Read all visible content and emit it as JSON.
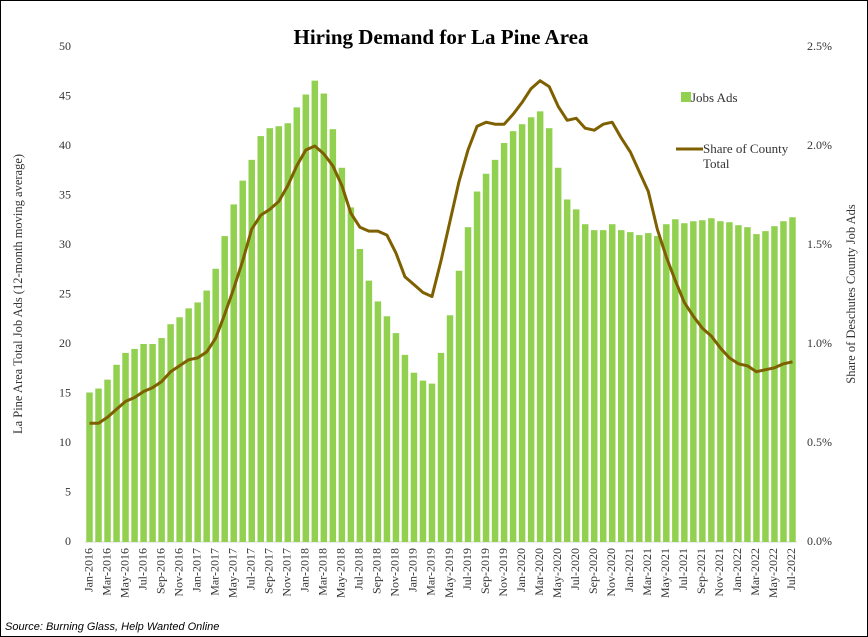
{
  "chart_data": {
    "type": "bar_line",
    "title": "Hiring Demand for La Pine Area",
    "y_label": "La Pine Area Total Job Ads (12-month moving average)",
    "y2_label": "Share of Deschutes County Job Ads",
    "source": "Source: Burning Glass, Help Wanted Online",
    "categories": [
      "Jan-2016",
      null,
      "Mar-2016",
      null,
      "May-2016",
      null,
      "Jul-2016",
      null,
      "Sep-2016",
      null,
      "Nov-2016",
      null,
      "Jan-2017",
      null,
      "Mar-2017",
      null,
      "May-2017",
      null,
      "Jul-2017",
      null,
      "Sep-2017",
      null,
      "Nov-2017",
      null,
      "Jan-2018",
      null,
      "Mar-2018",
      null,
      "May-2018",
      null,
      "Jul-2018",
      null,
      "Sep-2018",
      null,
      "Nov-2018",
      null,
      "Jan-2019",
      null,
      "Mar-2019",
      null,
      "May-2019",
      null,
      "Jul-2019",
      null,
      "Sep-2019",
      null,
      "Nov-2019",
      null,
      "Jan-2020",
      null,
      "Mar-2020",
      null,
      "May-2020",
      null,
      "Jul-2020",
      null,
      "Sep-2020",
      null,
      "Nov-2020",
      null,
      "Jan-2021",
      null,
      "Mar-2021",
      null,
      "May-2021",
      null,
      "Jul-2021",
      null,
      "Sep-2021",
      null,
      "Nov-2021",
      null,
      "Jan-2022",
      null,
      "Mar-2022",
      null,
      "May-2022",
      null,
      "Jul-2022"
    ],
    "series": [
      {
        "name": "Jobs Ads",
        "color": "#92d050",
        "values": [
          15.1,
          15.5,
          16.4,
          17.9,
          19.1,
          19.5,
          20.0,
          20.0,
          20.6,
          22.0,
          22.7,
          23.6,
          24.2,
          25.4,
          27.6,
          30.9,
          34.1,
          36.5,
          38.6,
          41.0,
          41.8,
          42.0,
          42.3,
          43.9,
          45.2,
          46.6,
          45.3,
          41.7,
          37.8,
          33.8,
          29.6,
          26.4,
          24.3,
          22.8,
          21.1,
          18.9,
          17.1,
          16.3,
          16.0,
          19.1,
          22.9,
          27.4,
          31.8,
          35.4,
          37.2,
          38.6,
          40.3,
          41.5,
          42.2,
          42.9,
          43.5,
          41.8,
          37.8,
          34.6,
          33.6,
          32.1,
          31.5,
          31.5,
          32.1,
          31.5,
          31.3,
          31.0,
          31.2,
          30.9,
          32.1,
          32.6,
          32.2,
          32.4,
          32.5,
          32.7,
          32.4,
          32.3,
          32.0,
          31.8,
          31.1,
          31.4,
          31.9,
          32.4,
          32.8
        ]
      },
      {
        "name": "Share of County Total",
        "color": "#7f6000",
        "axis": "y2",
        "values": [
          0.6,
          0.6,
          0.63,
          0.67,
          0.71,
          0.73,
          0.76,
          0.78,
          0.81,
          0.86,
          0.89,
          0.92,
          0.93,
          0.96,
          1.03,
          1.15,
          1.28,
          1.42,
          1.58,
          1.65,
          1.68,
          1.72,
          1.8,
          1.9,
          1.98,
          2.0,
          1.96,
          1.9,
          1.8,
          1.66,
          1.59,
          1.57,
          1.57,
          1.55,
          1.46,
          1.34,
          1.3,
          1.26,
          1.24,
          1.42,
          1.62,
          1.82,
          1.98,
          2.1,
          2.12,
          2.11,
          2.11,
          2.16,
          2.22,
          2.29,
          2.33,
          2.3,
          2.2,
          2.13,
          2.14,
          2.09,
          2.08,
          2.11,
          2.12,
          2.04,
          1.97,
          1.87,
          1.77,
          1.58,
          1.44,
          1.32,
          1.21,
          1.14,
          1.08,
          1.04,
          0.98,
          0.93,
          0.9,
          0.89,
          0.86,
          0.87,
          0.88,
          0.9,
          0.91
        ]
      }
    ],
    "ylim": [
      0,
      50
    ],
    "yticks": [
      0,
      5,
      10,
      15,
      20,
      25,
      30,
      35,
      40,
      45,
      50
    ],
    "y2lim": [
      0,
      2.5
    ],
    "y2ticks": [
      {
        "value": 0,
        "label": "0.0%"
      },
      {
        "value": 0.5,
        "label": "0.5%"
      },
      {
        "value": 1,
        "label": "1.0%"
      },
      {
        "value": 1.5,
        "label": "1.5%"
      },
      {
        "value": 2,
        "label": "2.0%"
      },
      {
        "value": 2.5,
        "label": "2.5%"
      }
    ],
    "legend": "upper right"
  }
}
